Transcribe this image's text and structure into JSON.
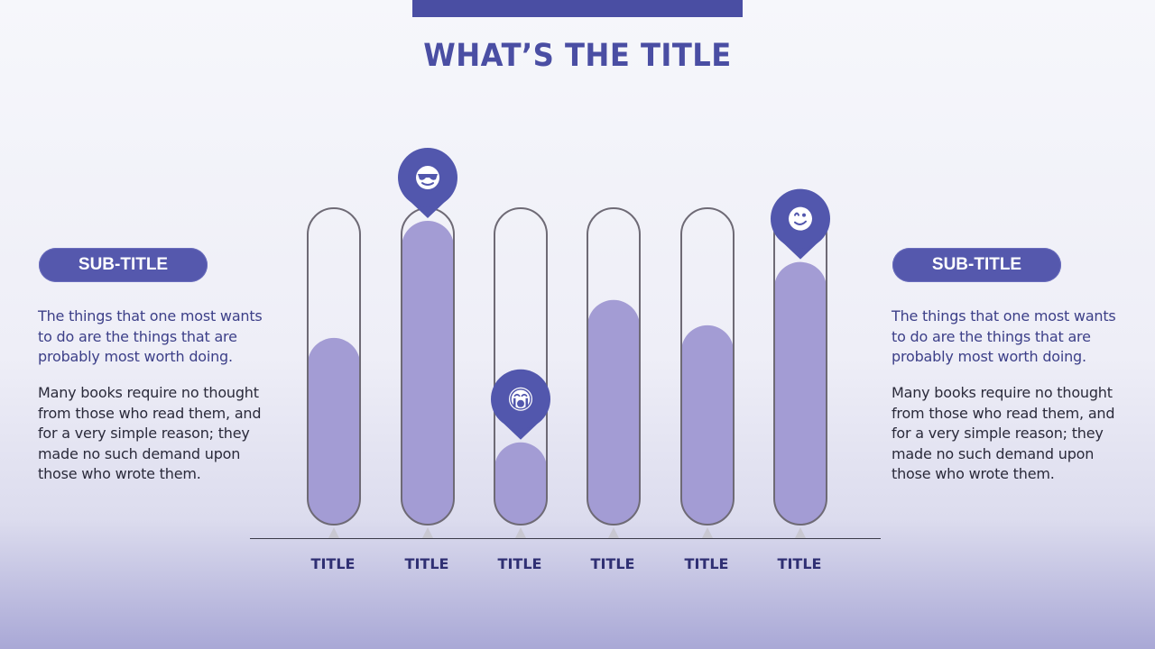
{
  "title": "WHAT’S THE TITLE",
  "left_panel": {
    "subtitle": "SUB-TITLE",
    "paragraph1": "The things that one most wants to do are the things that are probably most worth doing.",
    "paragraph2": "Many books require no thought from those who read them, and for a very simple reason; they made no such demand upon those who wrote them."
  },
  "right_panel": {
    "subtitle": "SUB-TITLE",
    "paragraph1": "The things that one most wants to do are the things that are probably most worth doing.",
    "paragraph2": "Many books require no thought from those who read them, and for a very simple reason; they made no such demand upon those who wrote them."
  },
  "colors": {
    "accent": "#4a4ea3",
    "fill": "#a39cd4",
    "marker": "#5257ad",
    "capsule_outline": "#6e6a75",
    "label": "#2f2f73"
  },
  "chart_data": {
    "type": "bar",
    "categories": [
      "TITLE",
      "TITLE",
      "TITLE",
      "TITLE",
      "TITLE",
      "TITLE"
    ],
    "values": [
      59,
      96,
      26,
      71,
      63,
      83
    ],
    "ylim": [
      0,
      100
    ],
    "markers": [
      {
        "index": 1,
        "icon": "sunglasses-face-icon"
      },
      {
        "index": 2,
        "icon": "crying-face-icon"
      },
      {
        "index": 5,
        "icon": "winking-face-icon"
      }
    ],
    "grid": false,
    "legend": "none"
  }
}
